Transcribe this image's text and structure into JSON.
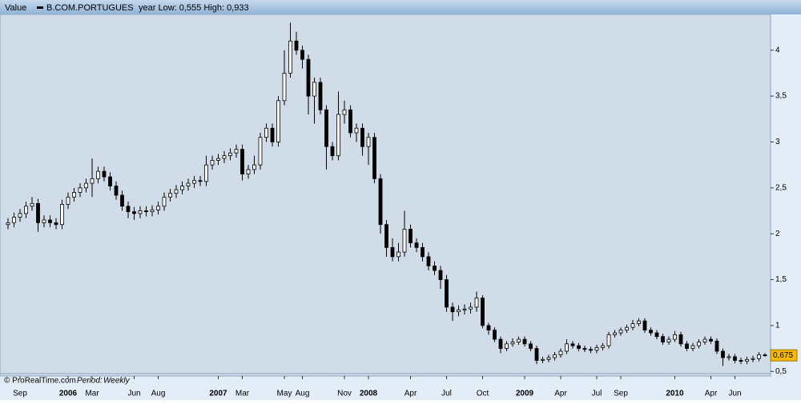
{
  "header": {
    "label": "Value",
    "instrument": "B.COM.PORTUGUES",
    "range_note": "year Low: 0,555 High: 0,933"
  },
  "footer": {
    "source": "© ProRealTime.com",
    "period_label": "Period:",
    "period": "Weekly"
  },
  "chart_data": {
    "type": "candlestick",
    "categories": [
      null,
      null,
      "Sep",
      null,
      null,
      null,
      null,
      null,
      null,
      null,
      "2006",
      null,
      null,
      null,
      "Mar",
      null,
      null,
      null,
      null,
      null,
      null,
      "Jun",
      null,
      null,
      null,
      "Aug",
      null,
      null,
      null,
      null,
      null,
      null,
      null,
      null,
      null,
      "2007",
      null,
      null,
      null,
      "Mar",
      null,
      null,
      null,
      null,
      null,
      null,
      "May",
      null,
      null,
      "Aug",
      null,
      null,
      null,
      null,
      null,
      null,
      "Nov",
      null,
      null,
      null,
      "2008",
      null,
      null,
      null,
      null,
      null,
      null,
      "Apr",
      null,
      null,
      null,
      null,
      null,
      "Jul",
      null,
      null,
      null,
      null,
      null,
      "Oct",
      null,
      null,
      null,
      null,
      null,
      null,
      "2009",
      null,
      null,
      null,
      null,
      null,
      "Apr",
      null,
      null,
      null,
      null,
      null,
      "Jul",
      null,
      null,
      null,
      "Sep",
      null,
      null,
      null,
      null,
      null,
      null,
      null,
      null,
      "2010",
      null,
      null,
      null,
      null,
      null,
      "Apr",
      null,
      null,
      null,
      "Jun",
      null,
      null,
      null,
      null,
      null
    ],
    "open": [
      2.1,
      2.12,
      2.18,
      2.22,
      2.3,
      2.33,
      2.12,
      2.15,
      2.12,
      2.1,
      2.32,
      2.4,
      2.45,
      2.5,
      2.55,
      2.6,
      2.68,
      2.62,
      2.52,
      2.42,
      2.3,
      2.24,
      2.22,
      2.25,
      2.24,
      2.26,
      2.3,
      2.4,
      2.44,
      2.48,
      2.52,
      2.55,
      2.58,
      2.57,
      2.75,
      2.8,
      2.82,
      2.85,
      2.88,
      2.92,
      2.65,
      2.7,
      2.75,
      3.05,
      3.15,
      3.0,
      3.45,
      3.75,
      4.1,
      4.0,
      3.9,
      3.5,
      3.65,
      3.35,
      2.95,
      2.85,
      3.3,
      3.35,
      3.1,
      3.15,
      2.95,
      3.05,
      2.6,
      2.1,
      1.85,
      1.75,
      1.8,
      2.05,
      1.9,
      1.85,
      1.75,
      1.65,
      1.6,
      1.5,
      1.2,
      1.15,
      1.17,
      1.18,
      1.2,
      1.3,
      1.0,
      0.95,
      0.85,
      0.75,
      0.8,
      0.82,
      0.85,
      0.8,
      0.75,
      0.62,
      0.63,
      0.65,
      0.68,
      0.72,
      0.8,
      0.78,
      0.75,
      0.74,
      0.73,
      0.76,
      0.78,
      0.9,
      0.92,
      0.95,
      0.98,
      1.02,
      1.05,
      0.95,
      0.92,
      0.88,
      0.82,
      0.85,
      0.9,
      0.8,
      0.75,
      0.78,
      0.82,
      0.85,
      0.83,
      0.72,
      0.65,
      0.66,
      0.62,
      0.61,
      0.63,
      0.64,
      0.68
    ],
    "high": [
      2.17,
      2.23,
      2.27,
      2.35,
      2.4,
      2.38,
      2.2,
      2.2,
      2.17,
      2.37,
      2.45,
      2.5,
      2.55,
      2.6,
      2.82,
      2.73,
      2.73,
      2.67,
      2.57,
      2.47,
      2.35,
      2.29,
      2.3,
      2.3,
      2.31,
      2.35,
      2.45,
      2.49,
      2.53,
      2.57,
      2.6,
      2.63,
      2.63,
      2.85,
      2.85,
      2.87,
      2.9,
      2.93,
      2.97,
      2.97,
      2.75,
      2.85,
      3.1,
      3.2,
      3.2,
      3.5,
      4.0,
      4.3,
      4.2,
      4.05,
      3.95,
      3.7,
      3.7,
      3.4,
      3.0,
      3.55,
      3.45,
      3.4,
      3.2,
      3.2,
      3.1,
      3.1,
      2.65,
      2.15,
      1.95,
      1.9,
      2.25,
      2.1,
      1.95,
      1.9,
      1.8,
      1.7,
      1.65,
      1.55,
      1.25,
      1.22,
      1.23,
      1.25,
      1.37,
      1.33,
      1.03,
      0.98,
      0.88,
      0.83,
      0.86,
      0.88,
      0.88,
      0.83,
      0.78,
      0.66,
      0.68,
      0.71,
      0.75,
      0.85,
      0.83,
      0.81,
      0.78,
      0.77,
      0.79,
      0.81,
      0.93,
      0.95,
      0.98,
      1.01,
      1.06,
      1.08,
      1.08,
      0.98,
      0.95,
      0.91,
      0.88,
      0.94,
      0.93,
      0.83,
      0.81,
      0.85,
      0.88,
      0.88,
      0.86,
      0.75,
      0.69,
      0.69,
      0.65,
      0.66,
      0.67,
      0.71,
      0.7
    ],
    "low": [
      2.05,
      2.07,
      2.13,
      2.17,
      2.25,
      2.02,
      2.07,
      2.07,
      2.05,
      2.05,
      2.27,
      2.35,
      2.4,
      2.45,
      2.4,
      2.55,
      2.57,
      2.47,
      2.37,
      2.25,
      2.17,
      2.15,
      2.17,
      2.19,
      2.19,
      2.21,
      2.25,
      2.35,
      2.39,
      2.43,
      2.47,
      2.5,
      2.52,
      2.52,
      2.7,
      2.75,
      2.77,
      2.8,
      2.83,
      2.58,
      2.6,
      2.65,
      2.7,
      3.0,
      2.95,
      2.95,
      3.4,
      3.7,
      3.95,
      3.8,
      3.3,
      3.2,
      3.3,
      2.7,
      2.8,
      2.8,
      3.2,
      3.05,
      3.0,
      2.85,
      2.75,
      2.55,
      2.0,
      1.75,
      1.7,
      1.7,
      1.75,
      1.85,
      1.8,
      1.7,
      1.6,
      1.55,
      1.4,
      1.15,
      1.05,
      1.1,
      1.12,
      1.13,
      1.15,
      0.97,
      0.9,
      0.82,
      0.7,
      0.72,
      0.77,
      0.79,
      0.77,
      0.72,
      0.58,
      0.59,
      0.6,
      0.62,
      0.65,
      0.69,
      0.75,
      0.72,
      0.71,
      0.7,
      0.7,
      0.73,
      0.75,
      0.87,
      0.89,
      0.92,
      0.95,
      0.99,
      0.92,
      0.89,
      0.85,
      0.79,
      0.79,
      0.82,
      0.77,
      0.72,
      0.72,
      0.75,
      0.79,
      0.8,
      0.69,
      0.56,
      0.62,
      0.59,
      0.58,
      0.58,
      0.6,
      0.61,
      0.66
    ],
    "close": [
      2.12,
      2.18,
      2.22,
      2.3,
      2.33,
      2.12,
      2.15,
      2.12,
      2.1,
      2.32,
      2.4,
      2.45,
      2.5,
      2.55,
      2.6,
      2.68,
      2.62,
      2.52,
      2.42,
      2.3,
      2.24,
      2.22,
      2.25,
      2.24,
      2.26,
      2.3,
      2.4,
      2.44,
      2.48,
      2.52,
      2.55,
      2.58,
      2.57,
      2.75,
      2.8,
      2.82,
      2.85,
      2.88,
      2.92,
      2.65,
      2.7,
      2.75,
      3.05,
      3.15,
      3.0,
      3.45,
      3.75,
      4.1,
      4.0,
      3.9,
      3.5,
      3.65,
      3.35,
      2.95,
      2.85,
      3.3,
      3.35,
      3.1,
      3.15,
      2.95,
      3.05,
      2.6,
      2.1,
      1.85,
      1.75,
      1.8,
      2.05,
      1.9,
      1.85,
      1.75,
      1.65,
      1.6,
      1.5,
      1.2,
      1.15,
      1.17,
      1.18,
      1.2,
      1.3,
      1.0,
      0.95,
      0.85,
      0.75,
      0.8,
      0.82,
      0.85,
      0.8,
      0.75,
      0.62,
      0.63,
      0.65,
      0.68,
      0.72,
      0.8,
      0.78,
      0.75,
      0.74,
      0.73,
      0.76,
      0.78,
      0.9,
      0.92,
      0.95,
      0.98,
      1.02,
      1.05,
      0.95,
      0.92,
      0.88,
      0.82,
      0.85,
      0.9,
      0.8,
      0.75,
      0.78,
      0.82,
      0.85,
      0.83,
      0.72,
      0.65,
      0.66,
      0.62,
      0.61,
      0.63,
      0.64,
      0.68,
      0.675
    ],
    "last_value_label": "0,675",
    "up_color": "#ffffff",
    "down_color": "#000000",
    "background": "#d0dce8",
    "ylim": [
      0.45,
      4.39
    ],
    "yticks": [
      {
        "value": 0.5,
        "label": "0,5"
      },
      1,
      {
        "value": 1.5,
        "label": "1,5"
      },
      2,
      {
        "value": 2.5,
        "label": "2,5"
      },
      3,
      {
        "value": 3.5,
        "label": "3,5"
      },
      4
    ],
    "grid": false
  }
}
